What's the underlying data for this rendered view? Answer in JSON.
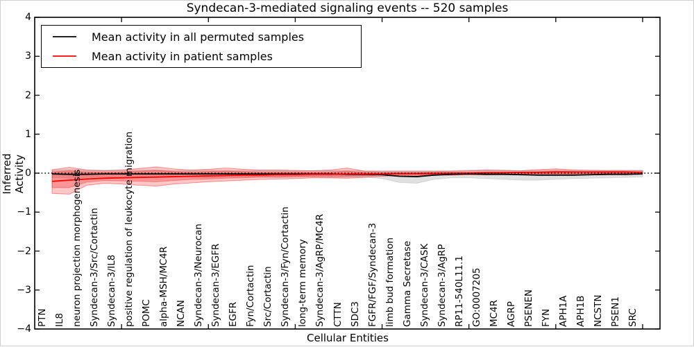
{
  "chart_data": {
    "type": "line",
    "title": "Syndecan-3-mediated signaling events -- 520 samples",
    "xlabel": "Cellular Entities",
    "ylabel": "Inferred Activity",
    "ylim": [
      -4,
      4
    ],
    "yticks": [
      -4,
      -3,
      -2,
      -1,
      0,
      1,
      2,
      3,
      4
    ],
    "grid": false,
    "legend_position": "upper-left",
    "zero_line": {
      "style": "dotted",
      "color": "#000000",
      "y": 0
    },
    "categories": [
      "PTN",
      "IL8",
      "neuron projection morphogenesis",
      "Syndecan-3/Src/Cortactin",
      "Syndecan-3/IL8",
      "positive regulation of leukocyte migration",
      "POMC",
      "alpha-MSH/MC4R",
      "NCAN",
      "Syndecan-3/Neurocan",
      "Syndecan-3/EGFR",
      "EGFR",
      "Fyn/Cortactin",
      "Src/Cortactin",
      "Syndecan-3/Fyn/Cortactin",
      "long-term memory",
      "Syndecan-3/AgRP/MC4R",
      "CTTN",
      "SDC3",
      "FGFR/FGF/Syndecan-3",
      "limb bud formation",
      "Gamma Secretase",
      "Syndecan-3/CASK",
      "Syndecan-3/AgRP",
      "RP11-540L11.1",
      "GO:0007205",
      "MC4R",
      "AGRP",
      "PSENEN",
      "FYN",
      "APH1A",
      "APH1B",
      "NCSTN",
      "PSEN1",
      "SRC"
    ],
    "series": [
      {
        "name": "Mean activity in all permuted samples",
        "color": "#000000",
        "values": [
          -0.02,
          -0.03,
          -0.03,
          -0.02,
          -0.02,
          -0.02,
          -0.02,
          -0.02,
          -0.02,
          -0.02,
          -0.02,
          -0.02,
          -0.02,
          -0.02,
          -0.02,
          -0.02,
          -0.02,
          -0.03,
          -0.03,
          -0.04,
          -0.08,
          -0.09,
          -0.05,
          -0.03,
          -0.02,
          -0.03,
          -0.03,
          -0.04,
          -0.05,
          -0.05,
          -0.05,
          -0.04,
          -0.03,
          -0.03,
          -0.02
        ]
      },
      {
        "name": "Mean activity in patient samples",
        "color": "#ff0000",
        "values": [
          -0.21,
          -0.18,
          -0.15,
          -0.13,
          -0.12,
          -0.11,
          -0.1,
          -0.09,
          -0.08,
          -0.07,
          -0.06,
          -0.05,
          -0.05,
          -0.04,
          -0.04,
          -0.03,
          -0.03,
          -0.02,
          -0.02,
          -0.02,
          -0.01,
          -0.01,
          -0.01,
          0.0,
          0.0,
          0.01,
          0.01,
          0.02,
          0.02,
          0.03,
          0.03,
          0.03,
          0.03,
          0.03,
          0.02
        ]
      }
    ],
    "bands": [
      {
        "name": "permuted-samples-range",
        "color": "#000000",
        "fill_opacity": 0.12,
        "edge_opacity": 0.1,
        "upper": [
          0.08,
          0.09,
          0.08,
          0.08,
          0.08,
          0.08,
          0.08,
          0.07,
          0.07,
          0.08,
          0.07,
          0.07,
          0.07,
          0.07,
          0.07,
          0.07,
          0.07,
          0.07,
          0.07,
          0.07,
          0.07,
          0.07,
          0.07,
          0.07,
          0.08,
          0.08,
          0.08,
          0.07,
          0.08,
          0.08,
          0.08,
          0.08,
          0.08,
          0.08,
          0.08
        ],
        "lower": [
          -0.11,
          -0.13,
          -0.11,
          -0.1,
          -0.11,
          -0.1,
          -0.12,
          -0.1,
          -0.1,
          -0.12,
          -0.1,
          -0.1,
          -0.1,
          -0.11,
          -0.1,
          -0.1,
          -0.12,
          -0.11,
          -0.1,
          -0.14,
          -0.24,
          -0.26,
          -0.16,
          -0.12,
          -0.12,
          -0.14,
          -0.16,
          -0.18,
          -0.18,
          -0.16,
          -0.14,
          -0.13,
          -0.12,
          -0.11,
          -0.1
        ]
      },
      {
        "name": "patient-samples-range-outer",
        "color": "#ff0000",
        "fill_opacity": 0.22,
        "edge_opacity": 0.4,
        "upper": [
          0.09,
          0.15,
          0.08,
          0.06,
          0.08,
          0.12,
          0.16,
          0.11,
          0.08,
          0.1,
          0.13,
          0.1,
          0.08,
          0.08,
          0.07,
          0.06,
          0.08,
          0.13,
          0.05,
          0.04,
          0.04,
          0.04,
          0.04,
          0.05,
          0.06,
          0.08,
          0.07,
          0.06,
          0.09,
          0.11,
          0.08,
          0.07,
          0.06,
          0.06,
          0.06
        ],
        "lower": [
          -0.52,
          -0.54,
          -0.31,
          -0.26,
          -0.28,
          -0.31,
          -0.33,
          -0.28,
          -0.25,
          -0.22,
          -0.2,
          -0.18,
          -0.16,
          -0.15,
          -0.14,
          -0.12,
          -0.12,
          -0.13,
          -0.11,
          -0.08,
          -0.06,
          -0.06,
          -0.05,
          -0.05,
          -0.04,
          -0.04,
          -0.03,
          -0.03,
          -0.02,
          -0.02,
          -0.02,
          -0.01,
          -0.01,
          -0.01,
          -0.02
        ]
      },
      {
        "name": "patient-samples-range-inner",
        "color": "#ff0000",
        "fill_opacity": 0.25,
        "edge_opacity": 0.3,
        "upper": [
          0.03,
          0.06,
          0.03,
          0.02,
          0.03,
          0.05,
          0.07,
          0.04,
          0.03,
          0.04,
          0.05,
          0.04,
          0.03,
          0.03,
          0.03,
          0.02,
          0.03,
          0.05,
          0.02,
          0.01,
          0.01,
          0.01,
          0.02,
          0.02,
          0.02,
          0.03,
          0.03,
          0.03,
          0.04,
          0.05,
          0.04,
          0.03,
          0.03,
          0.03,
          0.03
        ],
        "lower": [
          -0.37,
          -0.37,
          -0.23,
          -0.19,
          -0.2,
          -0.21,
          -0.22,
          -0.19,
          -0.16,
          -0.15,
          -0.13,
          -0.12,
          -0.1,
          -0.1,
          -0.09,
          -0.08,
          -0.08,
          -0.08,
          -0.07,
          -0.05,
          -0.04,
          -0.04,
          -0.03,
          -0.03,
          -0.02,
          -0.02,
          -0.02,
          -0.02,
          -0.01,
          -0.01,
          -0.01,
          -0.01,
          -0.01,
          -0.01,
          -0.01
        ]
      }
    ]
  }
}
